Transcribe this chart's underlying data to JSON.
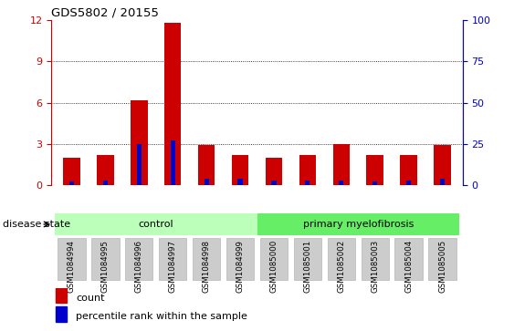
{
  "title": "GDS5802 / 20155",
  "samples": [
    "GSM1084994",
    "GSM1084995",
    "GSM1084996",
    "GSM1084997",
    "GSM1084998",
    "GSM1084999",
    "GSM1085000",
    "GSM1085001",
    "GSM1085002",
    "GSM1085003",
    "GSM1085004",
    "GSM1085005"
  ],
  "red_values": [
    2.0,
    2.2,
    6.2,
    11.8,
    2.9,
    2.2,
    2.0,
    2.2,
    3.0,
    2.2,
    2.2,
    2.9
  ],
  "blue_values": [
    0.28,
    0.38,
    3.0,
    3.25,
    0.48,
    0.48,
    0.38,
    0.38,
    0.38,
    0.28,
    0.38,
    0.48
  ],
  "red_color": "#cc0000",
  "blue_color": "#0000cc",
  "ylim_left": [
    0,
    12
  ],
  "ylim_right": [
    0,
    100
  ],
  "yticks_left": [
    0,
    3,
    6,
    9,
    12
  ],
  "yticks_right": [
    0,
    25,
    50,
    75,
    100
  ],
  "control_samples": 6,
  "group_labels": [
    "control",
    "primary myelofibrosis"
  ],
  "control_color": "#bbffbb",
  "myelo_color": "#66ee66",
  "disease_state_label": "disease state",
  "legend_count": "count",
  "legend_percentile": "percentile rank within the sample",
  "bar_width": 0.5,
  "tick_label_bg": "#cccccc",
  "grid_color": "#000000",
  "title_color": "#000000",
  "left_axis_color": "#cc0000",
  "right_axis_color": "#0000cc",
  "fig_width": 5.63,
  "fig_height": 3.63
}
